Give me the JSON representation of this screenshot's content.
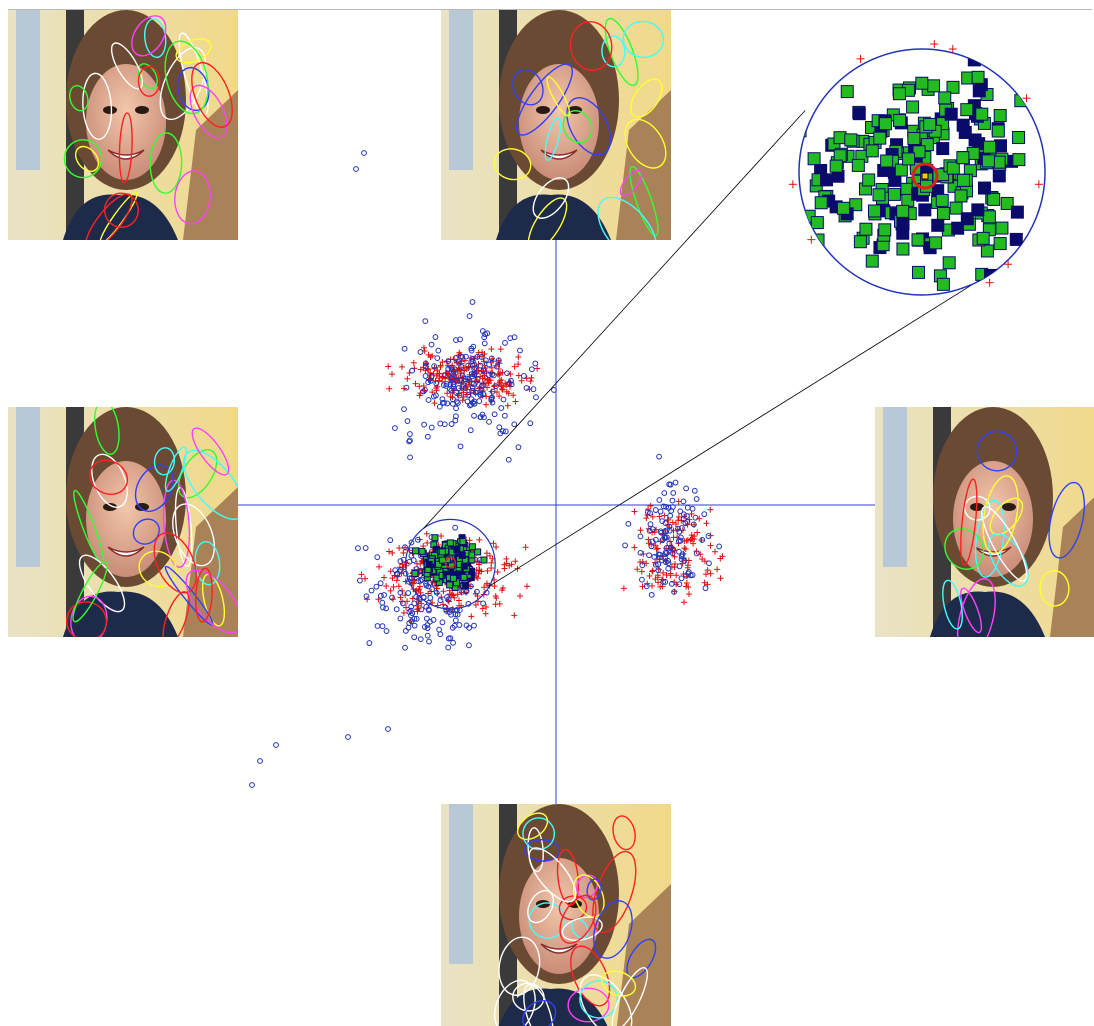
{
  "colors": {
    "axis": "#2b3fd6",
    "cross_marker": "#e01010",
    "circle_marker": "#2233bb",
    "selected_marker": "#22bb22",
    "dark_marker": "#0a0a6a",
    "selection_circle": "#2233bb",
    "center_ring": "#dd2020",
    "zoom_line": "#000000",
    "ellipse_palette": [
      "#ff2020",
      "#ffff30",
      "#40ffff",
      "#ff40ff",
      "#ffffff",
      "#3040ff",
      "#30ff30"
    ]
  },
  "icons": {
    "face_thumbnail": "face-photo-icon",
    "cross_marker": "plus-marker-icon",
    "circle_marker": "circle-marker-icon",
    "square_marker": "square-marker-icon"
  },
  "chart_data": {
    "type": "scatter",
    "title": "",
    "xlabel": "",
    "ylabel": "",
    "xlim": [
      -1.6,
      1.6
    ],
    "ylim": [
      -1.6,
      1.6
    ],
    "grid": false,
    "legend": "none",
    "axes_cross_at": [
      0,
      0
    ],
    "series": [
      {
        "marker": "plus",
        "color": "#e01010",
        "clusters": [
          {
            "center": [
              -0.55,
              0.8
            ],
            "spread": [
              0.32,
              0.12
            ],
            "count": 230
          },
          {
            "center": [
              -0.7,
              -0.45
            ],
            "spread": [
              0.35,
              0.2
            ],
            "count": 260
          },
          {
            "center": [
              0.75,
              -0.3
            ],
            "spread": [
              0.22,
              0.28
            ],
            "count": 140
          }
        ]
      },
      {
        "marker": "circle",
        "color": "#2233bb",
        "clusters": [
          {
            "center": [
              -0.55,
              0.75
            ],
            "spread": [
              0.35,
              0.3
            ],
            "count": 180
          },
          {
            "center": [
              -0.8,
              -0.55
            ],
            "spread": [
              0.3,
              0.28
            ],
            "count": 150
          },
          {
            "center": [
              0.72,
              -0.2
            ],
            "spread": [
              0.18,
              0.3
            ],
            "count": 110
          }
        ],
        "outliers": [
          [
            -1.2,
            2.2
          ],
          [
            -1.25,
            2.1
          ],
          [
            -1.9,
            -1.75
          ],
          [
            -1.85,
            -1.6
          ],
          [
            -1.75,
            -1.5
          ],
          [
            -1.3,
            -1.45
          ],
          [
            -1.05,
            -1.4
          ]
        ]
      },
      {
        "marker": "square",
        "color": "#22bb22",
        "edge": "#0a0a6a",
        "clusters": [
          {
            "center": [
              -0.66,
              -0.36
            ],
            "spread": [
              0.14,
              0.12
            ],
            "count": 230
          }
        ]
      }
    ],
    "selection": {
      "center": [
        -0.66,
        -0.37
      ],
      "radius": 0.28,
      "focus": [
        -0.66,
        -0.36
      ]
    },
    "zoom_inset": {
      "magnification": 4.5
    },
    "thumbnails": [
      {
        "name": "top-left",
        "ellipses": 22
      },
      {
        "name": "top-center",
        "ellipses": 18
      },
      {
        "name": "left",
        "ellipses": 26
      },
      {
        "name": "right",
        "ellipses": 14
      },
      {
        "name": "bottom-center",
        "ellipses": 30
      }
    ]
  }
}
